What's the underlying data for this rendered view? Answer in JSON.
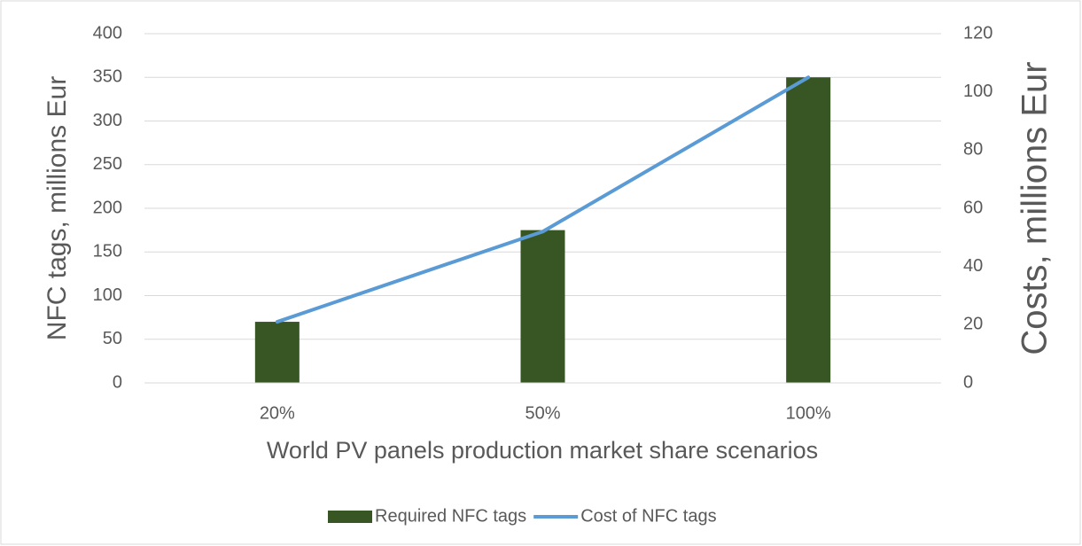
{
  "chart_data": {
    "type": "bar",
    "x_label": "World PV panels production market share scenarios",
    "y_label": "NFC tags, millions Eur",
    "y2_label": "Costs, millions Eur",
    "categories": [
      "20%",
      "50%",
      "100%"
    ],
    "series": [
      {
        "name": "Required NFC tags",
        "color": "#375623",
        "type": "bar",
        "values": [
          70,
          175,
          350
        ]
      },
      {
        "name": "Cost of NFC tags",
        "color": "#5b9bd5",
        "type": "line",
        "axis": "y2",
        "values": [
          21,
          52,
          105
        ]
      }
    ],
    "ylim": [
      0,
      400
    ],
    "yticks": [
      0,
      50,
      100,
      150,
      200,
      250,
      300,
      350,
      400
    ],
    "y2lim": [
      0,
      120
    ],
    "y2ticks": [
      0,
      20,
      40,
      60,
      80,
      100,
      120
    ],
    "grid": true,
    "legend": "bottom"
  }
}
